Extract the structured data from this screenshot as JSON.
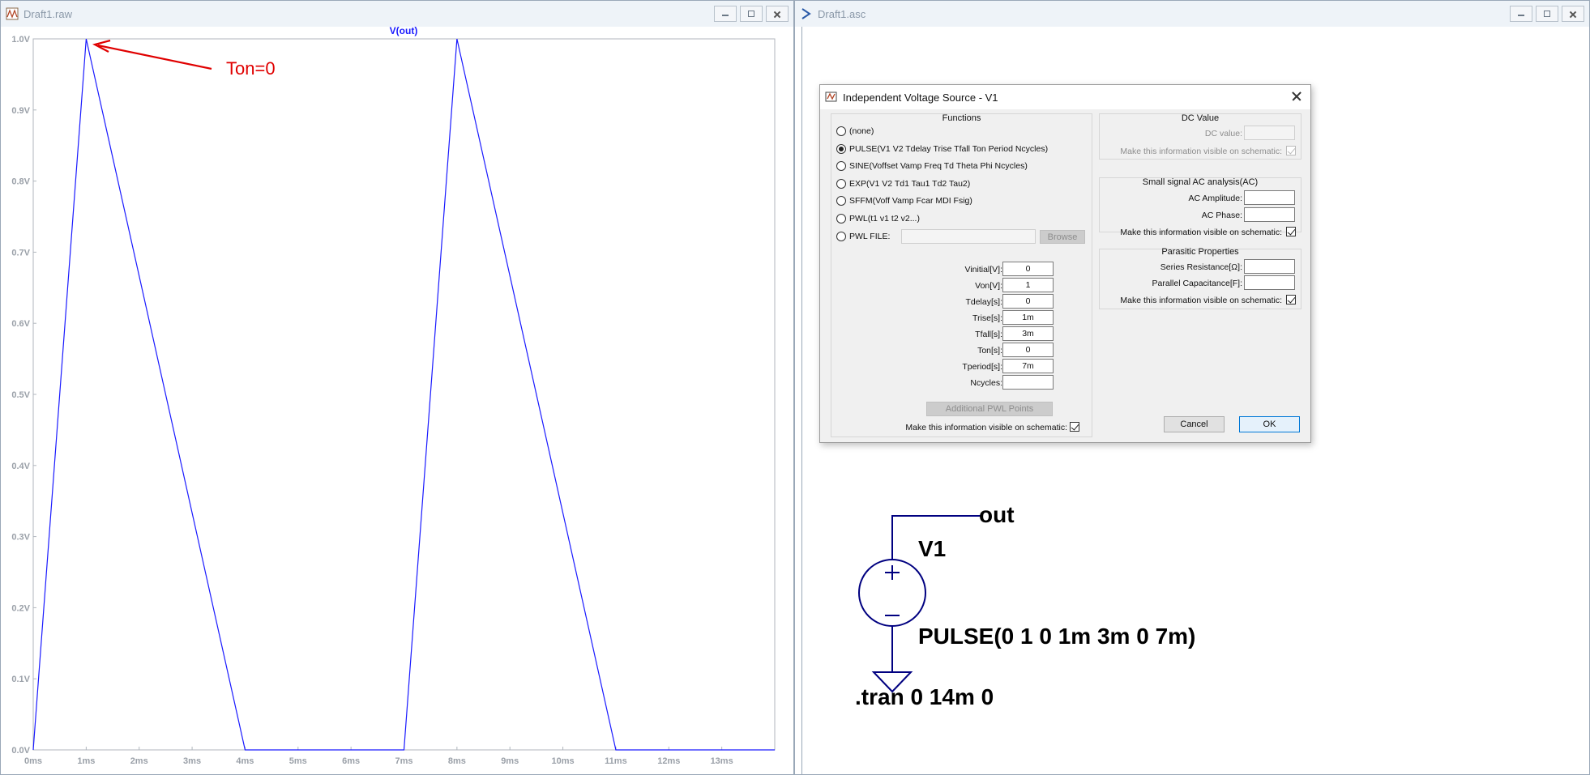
{
  "plot_window": {
    "title": "Draft1.raw",
    "trace_name": "V(out)",
    "annotation": "Ton=0",
    "colors": {
      "trace": "#1a1aff",
      "annotation": "#e00000",
      "axis_text": "#9aa0a8"
    }
  },
  "chart_data": {
    "type": "line",
    "title": "V(out)",
    "xlabel": "",
    "ylabel": "",
    "xlim": [
      0,
      14
    ],
    "ylim": [
      0,
      1.0
    ],
    "x_ticks": [
      "0ms",
      "1ms",
      "2ms",
      "3ms",
      "4ms",
      "5ms",
      "6ms",
      "7ms",
      "8ms",
      "9ms",
      "10ms",
      "11ms",
      "12ms",
      "13ms"
    ],
    "y_ticks": [
      "0.0V",
      "0.1V",
      "0.2V",
      "0.3V",
      "0.4V",
      "0.5V",
      "0.6V",
      "0.7V",
      "0.8V",
      "0.9V",
      "1.0V"
    ],
    "series": [
      {
        "name": "V(out)",
        "x": [
          0,
          1,
          4,
          7,
          8,
          11,
          14
        ],
        "y": [
          0,
          1,
          0,
          0,
          1,
          0,
          0
        ]
      }
    ],
    "grid": false
  },
  "schematic_window": {
    "title": "Draft1.asc",
    "net_label": "out",
    "component_name": "V1",
    "component_value": "PULSE(0 1 0 1m 3m 0 7m)",
    "directive": ".tran 0 14m 0"
  },
  "dialog": {
    "title": "Independent Voltage Source - V1",
    "functions_title": "Functions",
    "functions": [
      {
        "label": "(none)",
        "selected": false
      },
      {
        "label": "PULSE(V1 V2 Tdelay Trise Tfall Ton Period Ncycles)",
        "selected": true
      },
      {
        "label": "SINE(Voffset Vamp Freq Td Theta Phi Ncycles)",
        "selected": false
      },
      {
        "label": "EXP(V1 V2 Td1 Tau1 Td2 Tau2)",
        "selected": false
      },
      {
        "label": "SFFM(Voff Vamp Fcar MDI Fsig)",
        "selected": false
      },
      {
        "label": "PWL(t1 v1 t2 v2...)",
        "selected": false
      },
      {
        "label": "PWL FILE:",
        "selected": false
      }
    ],
    "browse_label": "Browse",
    "params": [
      {
        "label": "Vinitial[V]:",
        "value": "0"
      },
      {
        "label": "Von[V]:",
        "value": "1"
      },
      {
        "label": "Tdelay[s]:",
        "value": "0"
      },
      {
        "label": "Trise[s]:",
        "value": "1m"
      },
      {
        "label": "Tfall[s]:",
        "value": "3m"
      },
      {
        "label": "Ton[s]:",
        "value": "0"
      },
      {
        "label": "Tperiod[s]:",
        "value": "7m"
      },
      {
        "label": "Ncycles:",
        "value": ""
      }
    ],
    "additional_pwl_label": "Additional PWL Points",
    "visible_label": "Make this information visible on schematic:",
    "dc": {
      "title": "DC Value",
      "value_label": "DC value:",
      "value": ""
    },
    "ac": {
      "title": "Small signal AC analysis(AC)",
      "amp_label": "AC Amplitude:",
      "amp": "",
      "phase_label": "AC Phase:",
      "phase": ""
    },
    "parasitic": {
      "title": "Parasitic Properties",
      "series_label": "Series Resistance[Ω]:",
      "series": "",
      "parallel_label": "Parallel Capacitance[F]:",
      "parallel": ""
    },
    "cancel_label": "Cancel",
    "ok_label": "OK"
  }
}
